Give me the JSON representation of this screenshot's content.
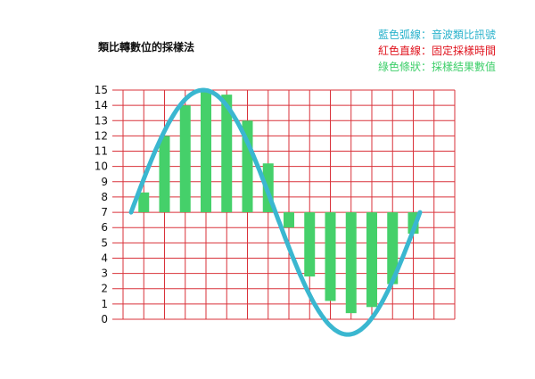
{
  "title": "類比轉數位的採樣法",
  "legend": [
    {
      "text": "藍色弧線：音波類比訊號",
      "color": "#2bb3cc"
    },
    {
      "text": "紅色直線：固定採樣時間",
      "color": "#e0141e"
    },
    {
      "text": "綠色條狀：採樣結果數值",
      "color": "#3ecf6a"
    }
  ],
  "colors": {
    "curve": "#3ab7d0",
    "grid": "#d9323a",
    "bars": "#45d06a"
  },
  "chart_data": {
    "type": "bar",
    "y_ticks": [
      0,
      1,
      2,
      3,
      4,
      5,
      6,
      7,
      8,
      9,
      10,
      11,
      12,
      13,
      14,
      15
    ],
    "ylim": [
      0,
      15
    ],
    "baseline": 7,
    "grid_columns": 16,
    "wave": {
      "center": 7,
      "amplitude": 8,
      "periods": 1
    },
    "samples": [
      8.3,
      12,
      14,
      15,
      14.7,
      13,
      10.2,
      6,
      2.8,
      1.2,
      0.4,
      0.8,
      2.3,
      5.6
    ]
  }
}
